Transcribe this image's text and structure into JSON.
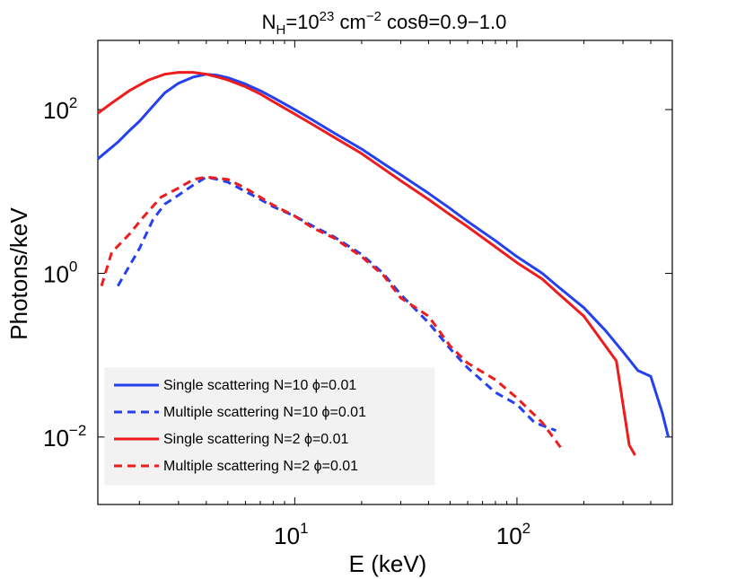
{
  "chart_data": {
    "type": "line",
    "title_parts": {
      "nh_base": "N",
      "nh_sub": "H",
      "nh_eq": "=10",
      "nh_exp": "23",
      "nh_unit": " cm",
      "nh_unit_exp": "−2",
      "cos_label": "cosθ=0.9−1.0"
    },
    "xlabel": "E (keV)",
    "ylabel": "Photons/keV",
    "xscale": "log",
    "yscale": "log",
    "xlim": [
      1.3,
      500
    ],
    "ylim": [
      0.0015,
      700
    ],
    "x_ticks": [
      {
        "value": 10,
        "base": "10",
        "exp": "1"
      },
      {
        "value": 100,
        "base": "10",
        "exp": "2"
      }
    ],
    "y_ticks": [
      {
        "value": 0.01,
        "base": "10",
        "exp": "−2"
      },
      {
        "value": 1,
        "base": "10",
        "exp": "0"
      },
      {
        "value": 100,
        "base": "10",
        "exp": "2"
      }
    ],
    "legend_position": "bottom-left",
    "colors": {
      "blue": "#2440f0",
      "red": "#ee1c1c"
    },
    "series": [
      {
        "name": "Single scattering N=10 ϕ=0.01",
        "color": "#2440f0",
        "dash": "solid",
        "points": [
          [
            1.3,
            25
          ],
          [
            1.45,
            32
          ],
          [
            1.6,
            40
          ],
          [
            1.8,
            55
          ],
          [
            2.0,
            72
          ],
          [
            2.3,
            110
          ],
          [
            2.6,
            160
          ],
          [
            3.0,
            210
          ],
          [
            3.5,
            250
          ],
          [
            4.0,
            270
          ],
          [
            4.5,
            262
          ],
          [
            5.0,
            245
          ],
          [
            6.0,
            205
          ],
          [
            7.0,
            170
          ],
          [
            8.0,
            140
          ],
          [
            10.0,
            100
          ],
          [
            12.0,
            75
          ],
          [
            15.0,
            52
          ],
          [
            20.0,
            33
          ],
          [
            25.0,
            22
          ],
          [
            30.0,
            16
          ],
          [
            40.0,
            9.5
          ],
          [
            50.0,
            6.2
          ],
          [
            60.0,
            4.3
          ],
          [
            80.0,
            2.5
          ],
          [
            100.0,
            1.6
          ],
          [
            130.0,
            1.0
          ],
          [
            150.0,
            0.72
          ],
          [
            200.0,
            0.38
          ],
          [
            250.0,
            0.2
          ],
          [
            300.0,
            0.11
          ],
          [
            350.0,
            0.065
          ],
          [
            400.0,
            0.055
          ],
          [
            450.0,
            0.02
          ],
          [
            480.0,
            0.01
          ]
        ]
      },
      {
        "name": "Multiple scattering N=10 ϕ=0.01",
        "color": "#2440f0",
        "dash": "dashed",
        "points": [
          [
            1.6,
            0.7
          ],
          [
            2.0,
            2.0
          ],
          [
            2.3,
            4.5
          ],
          [
            2.6,
            7
          ],
          [
            3.0,
            9
          ],
          [
            3.5,
            12
          ],
          [
            4.0,
            15
          ],
          [
            4.5,
            14
          ],
          [
            5.0,
            13
          ],
          [
            6.0,
            10
          ],
          [
            7.0,
            8
          ],
          [
            8.0,
            6.5
          ],
          [
            10.0,
            5
          ],
          [
            12.0,
            3.8
          ],
          [
            15.0,
            2.8
          ],
          [
            20.0,
            1.7
          ],
          [
            25.0,
            1.0
          ],
          [
            30.0,
            0.55
          ],
          [
            40.0,
            0.25
          ],
          [
            50.0,
            0.12
          ],
          [
            60.0,
            0.07
          ],
          [
            80.0,
            0.035
          ],
          [
            100.0,
            0.025
          ],
          [
            120.0,
            0.015
          ],
          [
            150.0,
            0.012
          ]
        ]
      },
      {
        "name": "Single scattering N=2 ϕ=0.01",
        "color": "#ee1c1c",
        "dash": "solid",
        "points": [
          [
            1.3,
            90
          ],
          [
            1.5,
            120
          ],
          [
            1.8,
            170
          ],
          [
            2.2,
            230
          ],
          [
            2.6,
            270
          ],
          [
            3.0,
            285
          ],
          [
            3.5,
            285
          ],
          [
            4.0,
            270
          ],
          [
            4.5,
            250
          ],
          [
            5.0,
            230
          ],
          [
            6.0,
            190
          ],
          [
            7.0,
            155
          ],
          [
            8.0,
            125
          ],
          [
            10.0,
            88
          ],
          [
            12.0,
            66
          ],
          [
            15.0,
            46
          ],
          [
            20.0,
            29
          ],
          [
            25.0,
            19
          ],
          [
            30.0,
            13.5
          ],
          [
            40.0,
            8
          ],
          [
            50.0,
            5.2
          ],
          [
            60.0,
            3.7
          ],
          [
            80.0,
            2.1
          ],
          [
            100.0,
            1.35
          ],
          [
            130.0,
            0.85
          ],
          [
            150.0,
            0.6
          ],
          [
            200.0,
            0.3
          ],
          [
            250.0,
            0.13
          ],
          [
            280.0,
            0.085
          ],
          [
            300.0,
            0.025
          ],
          [
            320.0,
            0.008
          ],
          [
            340.0,
            0.006
          ]
        ]
      },
      {
        "name": "Multiple scattering N=2 ϕ=0.01",
        "color": "#ee1c1c",
        "dash": "dashed",
        "points": [
          [
            1.35,
            0.7
          ],
          [
            1.5,
            1.8
          ],
          [
            1.8,
            3.0
          ],
          [
            2.1,
            5.0
          ],
          [
            2.5,
            8.5
          ],
          [
            3.0,
            11
          ],
          [
            3.5,
            14
          ],
          [
            4.0,
            15
          ],
          [
            5.0,
            14
          ],
          [
            6.0,
            11
          ],
          [
            7.0,
            8.5
          ],
          [
            8.0,
            6.8
          ],
          [
            10.0,
            5
          ],
          [
            12.0,
            3.6
          ],
          [
            15.0,
            2.7
          ],
          [
            20.0,
            1.6
          ],
          [
            25.0,
            0.95
          ],
          [
            30.0,
            0.5
          ],
          [
            40.0,
            0.3
          ],
          [
            50.0,
            0.13
          ],
          [
            60.0,
            0.08
          ],
          [
            80.0,
            0.05
          ],
          [
            100.0,
            0.03
          ],
          [
            130.0,
            0.015
          ],
          [
            160.0,
            0.007
          ]
        ]
      }
    ]
  }
}
